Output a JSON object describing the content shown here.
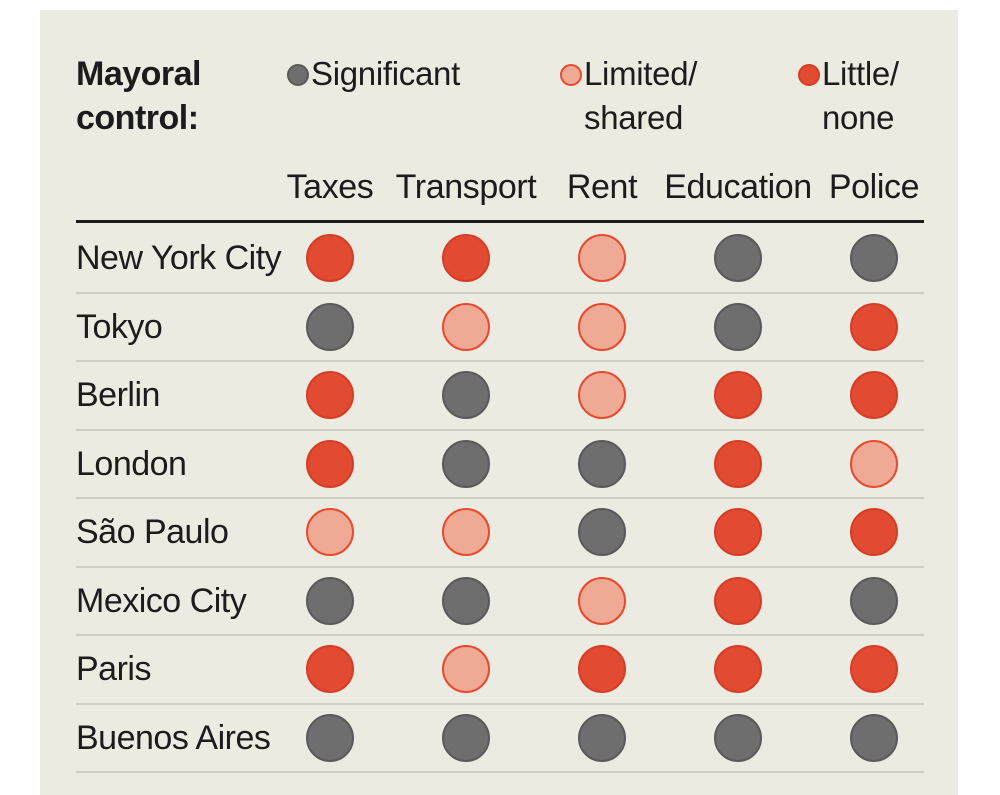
{
  "legend": {
    "title": "Mayoral\ncontrol:",
    "items": [
      {
        "key": "significant",
        "label": "Significant"
      },
      {
        "key": "limited",
        "label": "Limited/\nshared"
      },
      {
        "key": "little",
        "label": "Little/\nnone"
      }
    ]
  },
  "styles": {
    "significant": {
      "fill": "#6e6e6e",
      "stroke": "#5a5a5a"
    },
    "limited": {
      "fill": "#eeaa94",
      "stroke": "#e8492f"
    },
    "little": {
      "fill": "#e24a31",
      "stroke": "#d43e27"
    }
  },
  "chart_data": {
    "type": "table",
    "columns": [
      "Taxes",
      "Transport",
      "Rent",
      "Education",
      "Police"
    ],
    "rows": [
      {
        "city": "New York City",
        "values": [
          "little",
          "little",
          "limited",
          "significant",
          "significant"
        ]
      },
      {
        "city": "Tokyo",
        "values": [
          "significant",
          "limited",
          "limited",
          "significant",
          "little"
        ]
      },
      {
        "city": "Berlin",
        "values": [
          "little",
          "significant",
          "limited",
          "little",
          "little"
        ]
      },
      {
        "city": "London",
        "values": [
          "little",
          "significant",
          "significant",
          "little",
          "limited"
        ]
      },
      {
        "city": "São Paulo",
        "values": [
          "limited",
          "limited",
          "significant",
          "little",
          "little"
        ]
      },
      {
        "city": "Mexico City",
        "values": [
          "significant",
          "significant",
          "limited",
          "little",
          "significant"
        ]
      },
      {
        "city": "Paris",
        "values": [
          "little",
          "limited",
          "little",
          "little",
          "little"
        ]
      },
      {
        "city": "Buenos Aires",
        "values": [
          "significant",
          "significant",
          "significant",
          "significant",
          "significant"
        ]
      }
    ]
  }
}
